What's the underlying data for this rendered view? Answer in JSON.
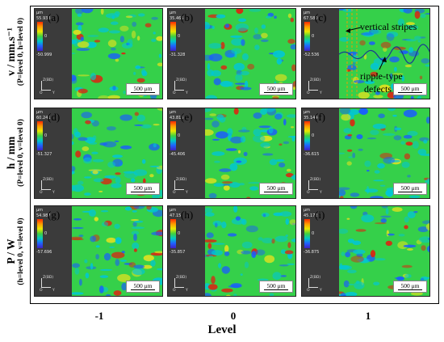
{
  "figure": {
    "row_labels": [
      {
        "main": "v / mm.s⁻¹",
        "sub": "(P=level 0, h=level 0)"
      },
      {
        "main": "h / mm",
        "sub": "(P=level 0, v=level 0)"
      },
      {
        "main": "P / W",
        "sub": "(h=level 0, v=level 0)"
      }
    ],
    "x_ticks": [
      "-1",
      "0",
      "1"
    ],
    "x_label": "Level",
    "scale_label": "500 μm",
    "unit_label": "μm",
    "axis_mini": {
      "z": "Z(BD)",
      "o": "O",
      "y": "Y"
    },
    "panels": [
      {
        "id": "a",
        "label": "(a)",
        "max": "55.933",
        "zero": "0",
        "min": "-50.999"
      },
      {
        "id": "b",
        "label": "(b)",
        "max": "35.465",
        "zero": "0",
        "min": "-31.328"
      },
      {
        "id": "c",
        "label": "(c)",
        "max": "67.580",
        "zero": "0",
        "min": "-52.536"
      },
      {
        "id": "d",
        "label": "(d)",
        "max": "60.241",
        "zero": "0",
        "min": "-51.327"
      },
      {
        "id": "e",
        "label": "(e)",
        "max": "43.815",
        "zero": "0",
        "min": "-45.406"
      },
      {
        "id": "f",
        "label": "(f)",
        "max": "35.144",
        "zero": "0",
        "min": "-36.615"
      },
      {
        "id": "g",
        "label": "(g)",
        "max": "54.987",
        "zero": "0",
        "min": "-57.696"
      },
      {
        "id": "h",
        "label": "(h)",
        "max": "47.15",
        "zero": "0",
        "min": "-35.857"
      },
      {
        "id": "i",
        "label": "(i)",
        "max": "45.172",
        "zero": "0",
        "min": "-36.875"
      }
    ],
    "annotations": {
      "vertical_stripes": "vertical stripes",
      "ripple_line1": "ripple-type",
      "ripple_line2": "defects"
    },
    "colors": {
      "map_base": "#35d04a",
      "map_blue": "#1a5cff",
      "map_cyan": "#00c6d8",
      "map_yellow": "#e6e21e",
      "map_red": "#e02010",
      "cbar_bg": "#3b3b3b",
      "dashed_line": "#e8a000"
    }
  }
}
